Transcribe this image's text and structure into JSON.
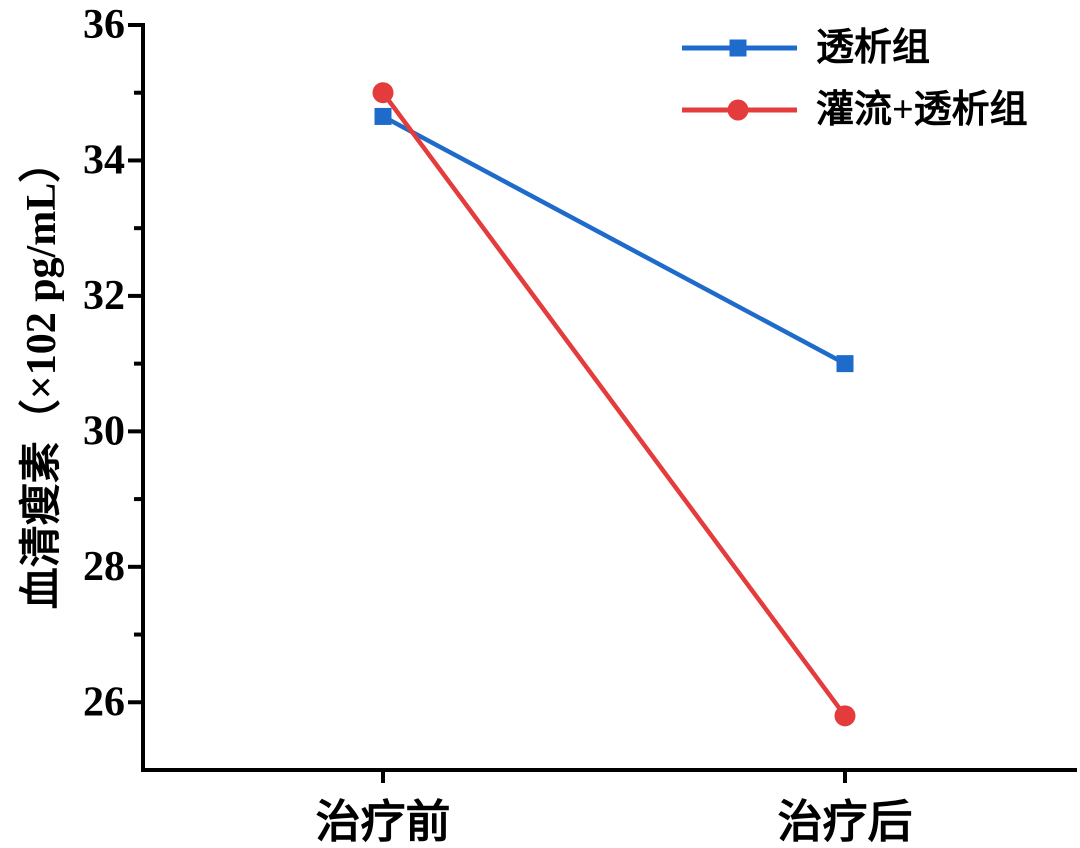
{
  "figure": {
    "background": "#ffffff"
  },
  "chart_data": {
    "type": "line",
    "title": "",
    "categories": [
      "治疗前",
      "治疗后"
    ],
    "series": [
      {
        "name": "透析组",
        "values": [
          34.65,
          31.0
        ],
        "color": "#1E6BCB",
        "marker": "square"
      },
      {
        "name": "灌流+透析组",
        "values": [
          35.0,
          25.8
        ],
        "color": "#E43C3C",
        "marker": "circle"
      }
    ],
    "xlabel": "",
    "ylabel": "血清瘦素（×102 pg/mL）",
    "ylim": [
      25,
      36
    ],
    "yticks": [
      26,
      28,
      30,
      32,
      34,
      36
    ],
    "minor_yticks": [
      27,
      29,
      31,
      33,
      35
    ],
    "grid": false,
    "legend_position": "top-right",
    "axis_color": "#000000",
    "text_color": "#000000"
  }
}
